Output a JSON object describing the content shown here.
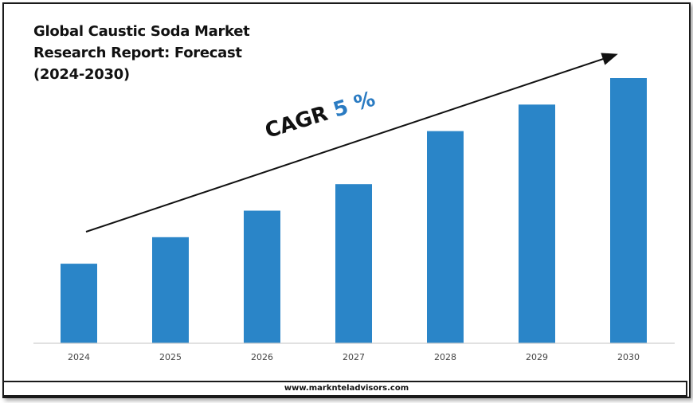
{
  "title_lines": [
    "Global Caustic Soda Market",
    "Research Report: Forecast",
    "(2024-2030)"
  ],
  "cagr": {
    "label": "CAGR",
    "value": "5 %"
  },
  "footer": "www.marknteladvisors.com",
  "colors": {
    "bar": "#2a85c8",
    "text": "#111111",
    "accent": "#2a7bc2"
  },
  "chart_data": {
    "type": "bar",
    "categories": [
      "2024",
      "2025",
      "2026",
      "2027",
      "2028",
      "2029",
      "2030"
    ],
    "values": [
      30,
      40,
      50,
      60,
      80,
      90,
      100
    ],
    "title": "Global Caustic Soda Market Research Report: Forecast (2024-2030)",
    "xlabel": "",
    "ylabel": "",
    "ylim": [
      0,
      100
    ],
    "grid": false,
    "legend": "none",
    "y_axis_labels_shown": false
  }
}
